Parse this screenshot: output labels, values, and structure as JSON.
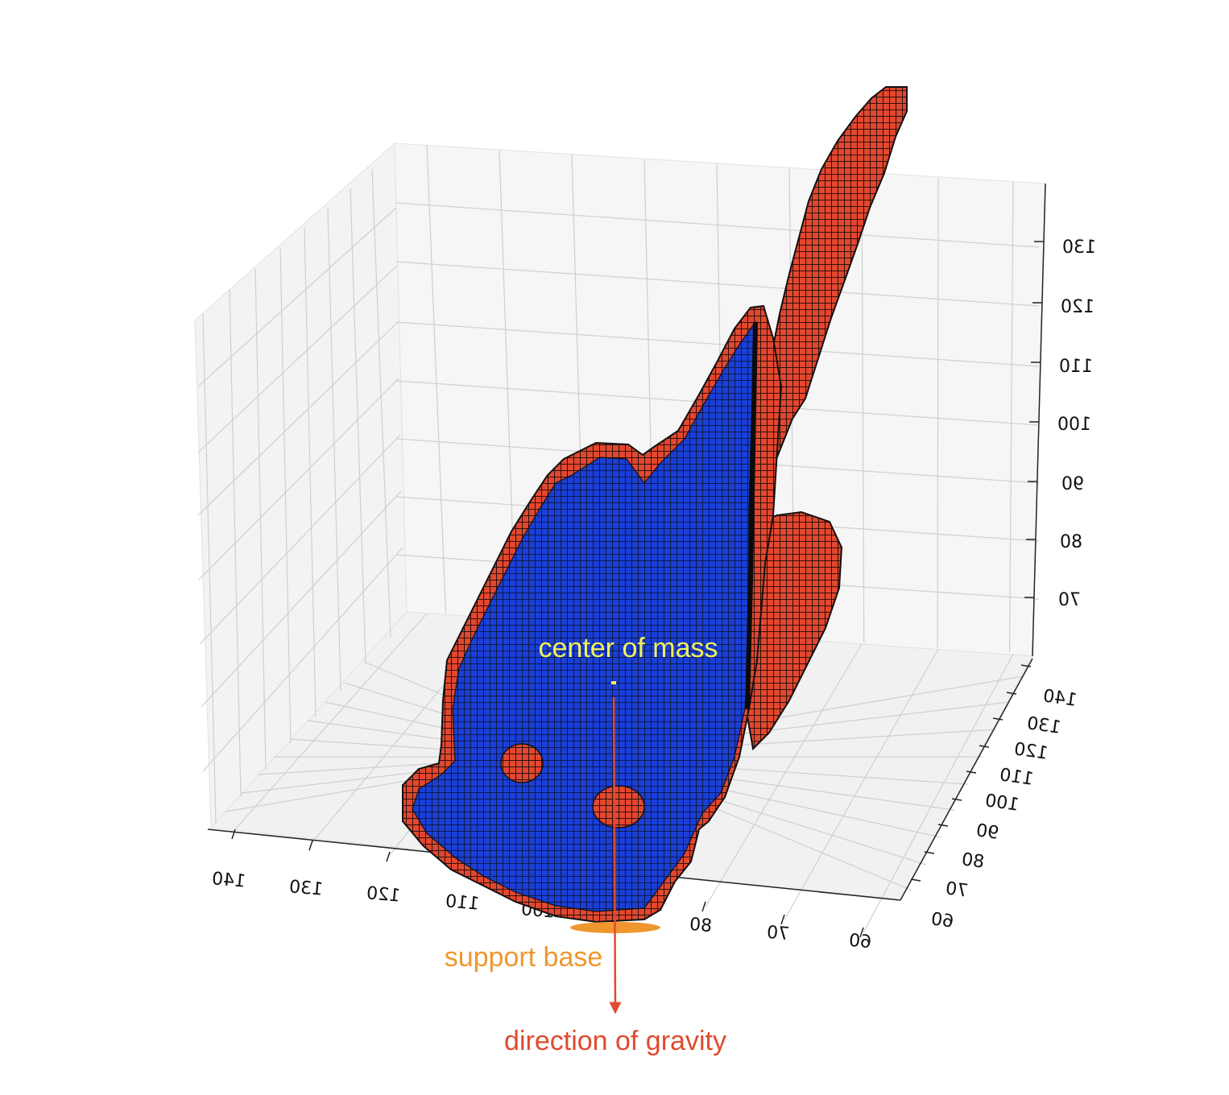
{
  "chart_data": {
    "type": "voxel-3d",
    "title": "",
    "axes": {
      "x": {
        "ticks": [
          "140",
          "130",
          "120",
          "110",
          "100",
          "80",
          "70",
          "60"
        ],
        "mirrored": true
      },
      "y": {
        "ticks": [
          "140",
          "130",
          "120",
          "110",
          "100",
          "90",
          "80",
          "70",
          "60"
        ],
        "mirrored": true
      },
      "z": {
        "ticks": [
          "130",
          "120",
          "110",
          "100",
          "90",
          "80",
          "70"
        ],
        "mirrored": true
      }
    },
    "grid": true,
    "colors": {
      "pane": "#f4f4f4",
      "grid": "#cfcfcf",
      "voxel_face": "#1a3fd6",
      "voxel_edge": "#e2472f",
      "voxel_outline": "#111111"
    },
    "annotations": {
      "center_of_mass": {
        "label": "center of mass",
        "color": "#f2f25a"
      },
      "support_base": {
        "label": "support base",
        "color": "#f0962f"
      },
      "gravity": {
        "label": "direction of gravity",
        "color": "#e04a2f"
      }
    }
  }
}
